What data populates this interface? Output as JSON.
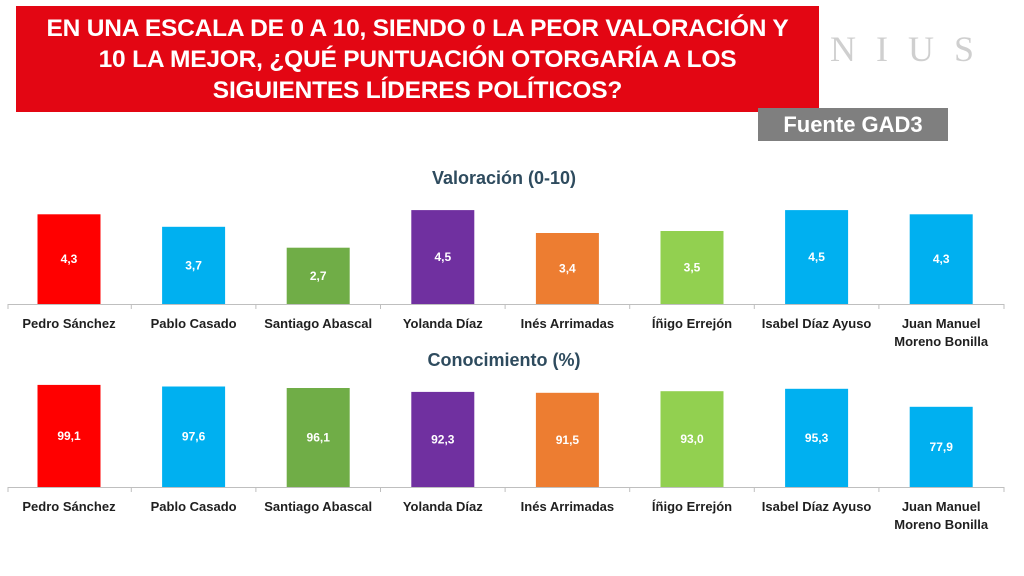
{
  "header": {
    "title_lines": [
      "EN UNA ESCALA DE 0 A 10, SIENDO 0 LA PEOR VALORACIÓN Y",
      "10 LA MEJOR, ¿QUÉ PUNTUACIÓN OTORGARÍA A LOS",
      "SIGUIENTES LÍDERES POLÍTICOS?"
    ],
    "watermark": "NIUS",
    "source": "Fuente GAD3"
  },
  "chart_data": [
    {
      "type": "bar",
      "title": "Valoración (0-10)",
      "categories": [
        "Pedro Sánchez",
        "Pablo Casado",
        "Santiago Abascal",
        "Yolanda Díaz",
        "Inés Arrimadas",
        "Íñigo Errejón",
        "Isabel Díaz Ayuso",
        "Juan Manuel Moreno Bonilla"
      ],
      "category_lines": [
        [
          "Pedro Sánchez"
        ],
        [
          "Pablo Casado"
        ],
        [
          "Santiago Abascal"
        ],
        [
          "Yolanda Díaz"
        ],
        [
          "Inés Arrimadas"
        ],
        [
          "Íñigo Errejón"
        ],
        [
          "Isabel Díaz Ayuso"
        ],
        [
          "Juan Manuel",
          "Moreno Bonilla"
        ]
      ],
      "values": [
        4.3,
        3.7,
        2.7,
        4.5,
        3.4,
        3.5,
        4.5,
        4.3
      ],
      "value_labels": [
        "4,3",
        "3,7",
        "2,7",
        "4,5",
        "3,4",
        "3,5",
        "4,5",
        "4,3"
      ],
      "colors": [
        "#ff0000",
        "#00b0f0",
        "#70ad47",
        "#7030a0",
        "#ed7d31",
        "#92d050",
        "#00b0f0",
        "#00b0f0"
      ],
      "ylim": [
        0,
        4.6
      ],
      "xlabel": "",
      "ylabel": "",
      "grid": false
    },
    {
      "type": "bar",
      "title": "Conocimiento (%)",
      "categories": [
        "Pedro Sánchez",
        "Pablo Casado",
        "Santiago Abascal",
        "Yolanda Díaz",
        "Inés Arrimadas",
        "Íñigo Errejón",
        "Isabel Díaz Ayuso",
        "Juan Manuel Moreno Bonilla"
      ],
      "category_lines": [
        [
          "Pedro Sánchez"
        ],
        [
          "Pablo Casado"
        ],
        [
          "Santiago Abascal"
        ],
        [
          "Yolanda Díaz"
        ],
        [
          "Inés Arrimadas"
        ],
        [
          "Íñigo Errejón"
        ],
        [
          "Isabel Díaz Ayuso"
        ],
        [
          "Juan Manuel",
          "Moreno Bonilla"
        ]
      ],
      "values": [
        99.1,
        97.6,
        96.1,
        92.3,
        91.5,
        93.0,
        95.3,
        77.9
      ],
      "value_labels": [
        "99,1",
        "97,6",
        "96,1",
        "92,3",
        "91,5",
        "93,0",
        "95,3",
        "77,9"
      ],
      "colors": [
        "#ff0000",
        "#00b0f0",
        "#70ad47",
        "#7030a0",
        "#ed7d31",
        "#92d050",
        "#00b0f0",
        "#00b0f0"
      ],
      "ylim": [
        0,
        100
      ],
      "xlabel": "",
      "ylabel": "",
      "grid": false
    }
  ]
}
